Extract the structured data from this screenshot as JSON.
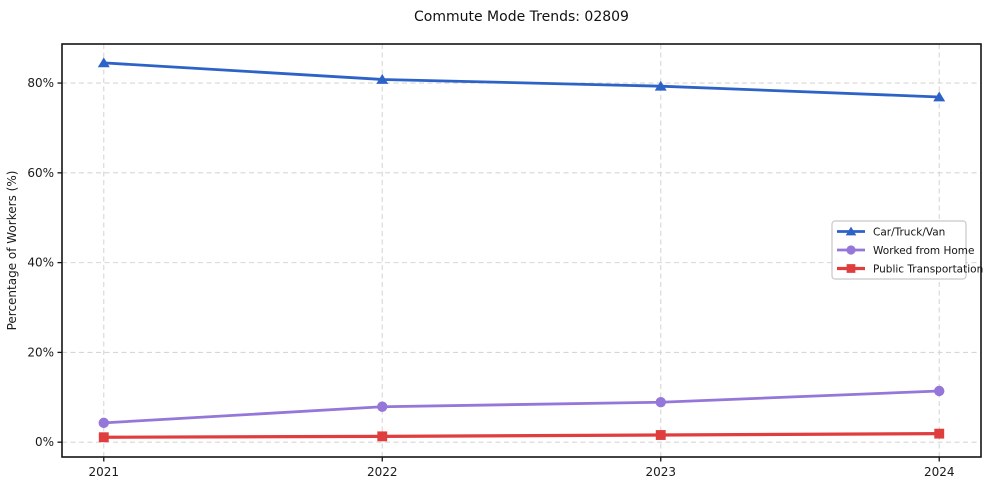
{
  "chart_data": {
    "type": "line",
    "title": "Commute Mode Trends: 02809",
    "xlabel": "",
    "ylabel": "Percentage of Workers (%)",
    "x": [
      2021,
      2022,
      2023,
      2024
    ],
    "x_tick_labels": [
      "2021",
      "2022",
      "2023",
      "2024"
    ],
    "series": [
      {
        "name": "Car/Truck/Van",
        "values": [
          84.5,
          80.8,
          79.3,
          76.9
        ],
        "color": "#2d63c7",
        "marker": "triangle"
      },
      {
        "name": "Worked from Home",
        "values": [
          4.3,
          7.9,
          8.9,
          11.4
        ],
        "color": "#9576d9",
        "marker": "circle"
      },
      {
        "name": "Public Transportation",
        "values": [
          1.1,
          1.3,
          1.6,
          1.9
        ],
        "color": "#e03e3e",
        "marker": "square"
      }
    ],
    "y_ticks": [
      0,
      20,
      40,
      60,
      80
    ],
    "y_tick_suffix": "%",
    "xlim": [
      2020.85,
      2024.15
    ],
    "ylim": [
      -3.3,
      88.7
    ],
    "grid": true,
    "legend_position": "center-right",
    "colors": {
      "background": "#ffffff",
      "grid": "#d6d6d6",
      "spine": "#141414",
      "tick_label": "#1a1a1a",
      "legend_border": "#c8c8c8",
      "legend_bg": "#ffffff"
    }
  }
}
